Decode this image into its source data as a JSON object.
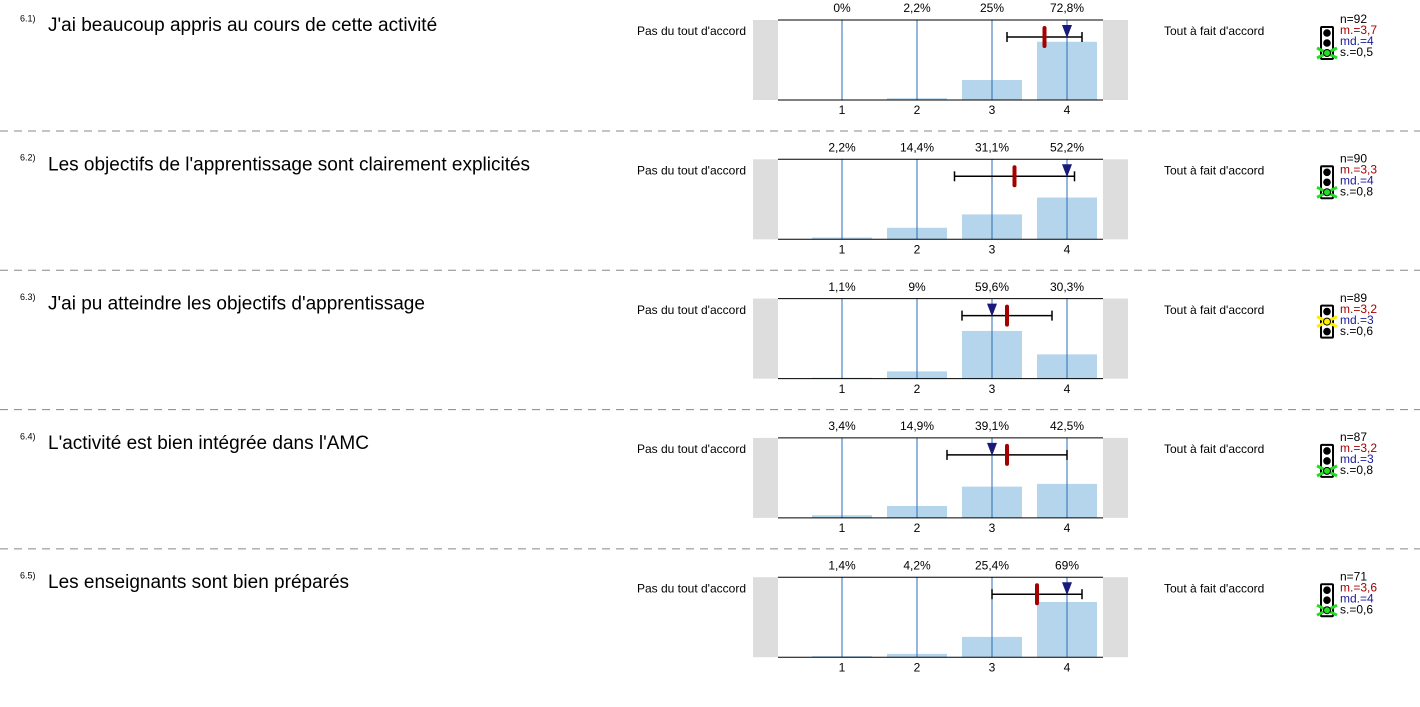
{
  "chart_data": [
    {
      "type": "bar",
      "number": "6.1)",
      "title": "J'ai beaucoup appris au cours de cette activité",
      "left_label": "Pas du tout d'accord",
      "right_label": "Tout à fait d'accord",
      "categories": [
        "1",
        "2",
        "3",
        "4"
      ],
      "values": [
        0,
        2.2,
        25,
        72.8
      ],
      "value_labels": [
        "0%",
        "2,2%",
        "25%",
        "72,8%"
      ],
      "ylim": [
        0,
        100
      ],
      "color": "#b5d5ed",
      "n": {
        "value": 92,
        "label": "n=92"
      },
      "mean": {
        "value": 3.7,
        "label": "m.=3,7"
      },
      "median": {
        "value": 4,
        "label": "md.=4"
      },
      "sd": {
        "value": 0.5,
        "label": "s.=0,5"
      },
      "light": "green"
    },
    {
      "type": "bar",
      "number": "6.2)",
      "title": "Les objectifs de l'apprentissage sont clairement explicités",
      "left_label": "Pas du tout d'accord",
      "right_label": "Tout à fait d'accord",
      "categories": [
        "1",
        "2",
        "3",
        "4"
      ],
      "values": [
        2.2,
        14.4,
        31.1,
        52.2
      ],
      "value_labels": [
        "2,2%",
        "14,4%",
        "31,1%",
        "52,2%"
      ],
      "ylim": [
        0,
        100
      ],
      "color": "#b5d5ed",
      "n": {
        "value": 90,
        "label": "n=90"
      },
      "mean": {
        "value": 3.3,
        "label": "m.=3,3"
      },
      "median": {
        "value": 4,
        "label": "md.=4"
      },
      "sd": {
        "value": 0.8,
        "label": "s.=0,8"
      },
      "light": "green"
    },
    {
      "type": "bar",
      "number": "6.3)",
      "title": "J'ai pu atteindre les objectifs d'apprentissage",
      "left_label": "Pas du tout d'accord",
      "right_label": "Tout à fait d'accord",
      "categories": [
        "1",
        "2",
        "3",
        "4"
      ],
      "values": [
        1.1,
        9,
        59.6,
        30.3
      ],
      "value_labels": [
        "1,1%",
        "9%",
        "59,6%",
        "30,3%"
      ],
      "ylim": [
        0,
        100
      ],
      "color": "#b5d5ed",
      "n": {
        "value": 89,
        "label": "n=89"
      },
      "mean": {
        "value": 3.2,
        "label": "m.=3,2"
      },
      "median": {
        "value": 3,
        "label": "md.=3"
      },
      "sd": {
        "value": 0.6,
        "label": "s.=0,6"
      },
      "light": "yellow"
    },
    {
      "type": "bar",
      "number": "6.4)",
      "title": "L'activité est bien intégrée dans l'AMC",
      "left_label": "Pas du tout d'accord",
      "right_label": "Tout à fait d'accord",
      "categories": [
        "1",
        "2",
        "3",
        "4"
      ],
      "values": [
        3.4,
        14.9,
        39.1,
        42.5
      ],
      "value_labels": [
        "3,4%",
        "14,9%",
        "39,1%",
        "42,5%"
      ],
      "ylim": [
        0,
        100
      ],
      "color": "#b5d5ed",
      "n": {
        "value": 87,
        "label": "n=87"
      },
      "mean": {
        "value": 3.2,
        "label": "m.=3,2"
      },
      "median": {
        "value": 3,
        "label": "md.=3"
      },
      "sd": {
        "value": 0.8,
        "label": "s.=0,8"
      },
      "light": "green"
    },
    {
      "type": "bar",
      "number": "6.5)",
      "title": "Les enseignants sont bien préparés",
      "left_label": "Pas du tout d'accord",
      "right_label": "Tout à fait d'accord",
      "categories": [
        "1",
        "2",
        "3",
        "4"
      ],
      "values": [
        1.4,
        4.2,
        25.4,
        69
      ],
      "value_labels": [
        "1,4%",
        "4,2%",
        "25,4%",
        "69%"
      ],
      "ylim": [
        0,
        100
      ],
      "color": "#b5d5ed",
      "n": {
        "value": 71,
        "label": "n=71"
      },
      "mean": {
        "value": 3.6,
        "label": "m.=3,6"
      },
      "median": {
        "value": 4,
        "label": "md.=4"
      },
      "sd": {
        "value": 0.6,
        "label": "s.=0,6"
      },
      "light": "green"
    }
  ]
}
